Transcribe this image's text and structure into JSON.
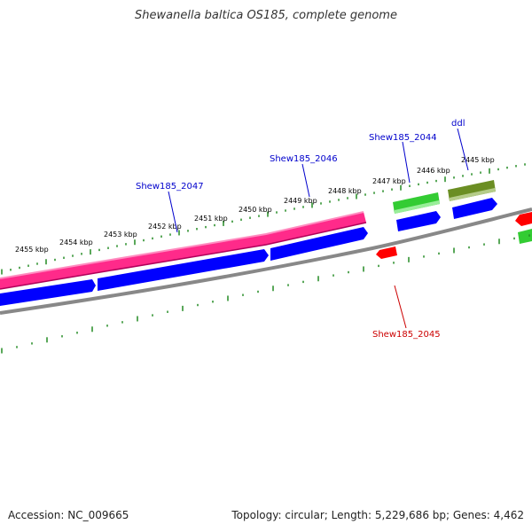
{
  "title": "Shewanella baltica OS185, complete genome",
  "footer": {
    "accession": "Accession: NC_009665",
    "summary": "Topology: circular; Length: 5,229,686 bp; Genes: 4,462"
  },
  "ticks": [
    "2455 kbp",
    "2454 kbp",
    "2453 kbp",
    "2452 kbp",
    "2451 kbp",
    "2450 kbp",
    "2449 kbp",
    "2448 kbp",
    "2447 kbp",
    "2446 kbp",
    "2445 kbp"
  ],
  "gene_labels": {
    "g2047": "Shew185_2047",
    "g2046": "Shew185_2046",
    "g2044": "Shew185_2044",
    "ddl": "ddl",
    "g2045": "Shew185_2045"
  },
  "colors": {
    "cds_forward": "#0000ff",
    "gene_pink": "#ff2a8a",
    "gene_green": "#33cc33",
    "gene_olive": "#6b8e23",
    "gene_red": "#ff0000",
    "backbone": "#888888",
    "tick": "#228b22",
    "label_blue": "#0000cc",
    "label_red": "#cc0000"
  }
}
